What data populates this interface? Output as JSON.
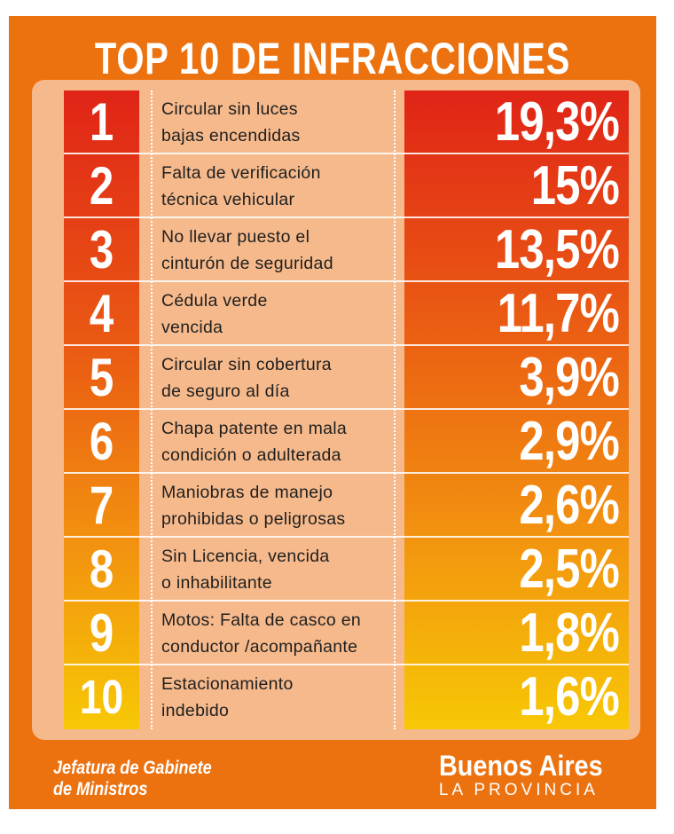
{
  "chart_data": {
    "type": "table",
    "title": "TOP 10 DE INFRACCIONES",
    "rows": [
      {
        "rank": "1",
        "line1": "Circular sin luces",
        "line2": "bajas encendidas",
        "value": 19.3,
        "label": "19,3%"
      },
      {
        "rank": "2",
        "line1": "Falta de verificación",
        "line2": "técnica vehicular",
        "value": 15,
        "label": "15%"
      },
      {
        "rank": "3",
        "line1": "No llevar puesto el",
        "line2": "cinturón de seguridad",
        "value": 13.5,
        "label": "13,5%"
      },
      {
        "rank": "4",
        "line1": "Cédula verde",
        "line2": "vencida",
        "value": 11.7,
        "label": "11,7%"
      },
      {
        "rank": "5",
        "line1": "Circular sin cobertura",
        "line2": "de seguro al  día",
        "value": 3.9,
        "label": "3,9%"
      },
      {
        "rank": "6",
        "line1": "Chapa patente en mala",
        "line2": "condición o adulterada",
        "value": 2.9,
        "label": "2,9%"
      },
      {
        "rank": "7",
        "line1": "Maniobras de manejo",
        "line2": "prohibidas o peligrosas",
        "value": 2.6,
        "label": "2,6%"
      },
      {
        "rank": "8",
        "line1": "Sin Licencia, vencida",
        "line2": "o inhabilitante",
        "value": 2.5,
        "label": "2,5%"
      },
      {
        "rank": "9",
        "line1": "Motos: Falta de casco en",
        "line2": "conductor /acompañante",
        "value": 1.8,
        "label": "1,8%"
      },
      {
        "rank": "10",
        "line1": "Estacionamiento",
        "line2": "indebido",
        "value": 1.6,
        "label": "1,6%"
      }
    ]
  },
  "footer": {
    "left_line1": "Jefatura de Gabinete",
    "left_line2": "de Ministros",
    "brand_main": "Buenos Aires",
    "brand_sub": "LA PROVINCIA"
  },
  "colors": {
    "background": "#ec7210",
    "panel": "#f6b98b",
    "gradient_top": "#e02417",
    "gradient_bottom": "#f7c805"
  }
}
